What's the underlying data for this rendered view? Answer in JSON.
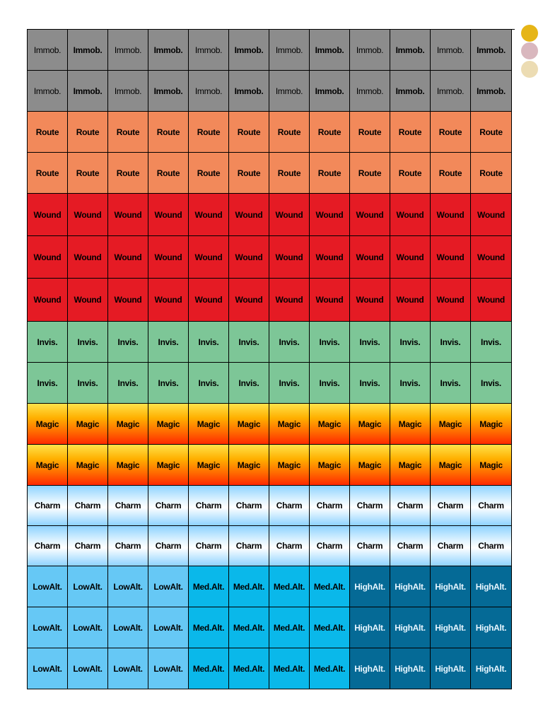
{
  "grid": {
    "rows": [
      {
        "type": "immob",
        "label": "Immob."
      },
      {
        "type": "immob",
        "label": "Immob."
      },
      {
        "type": "route",
        "label": "Route"
      },
      {
        "type": "route",
        "label": "Route"
      },
      {
        "type": "wound",
        "label": "Wound"
      },
      {
        "type": "wound",
        "label": "Wound"
      },
      {
        "type": "wound",
        "label": "Wound"
      },
      {
        "type": "invis",
        "label": "Invis."
      },
      {
        "type": "invis",
        "label": "Invis."
      },
      {
        "type": "magic",
        "label": "Magic"
      },
      {
        "type": "magic",
        "label": "Magic"
      },
      {
        "type": "charm",
        "label": "Charm"
      },
      {
        "type": "charm",
        "label": "Charm"
      },
      {
        "type": "alt",
        "label": ""
      },
      {
        "type": "alt",
        "label": ""
      },
      {
        "type": "alt",
        "label": ""
      }
    ],
    "altitude_labels": {
      "low": {
        "line1": "Low",
        "line2": "Alt."
      },
      "med": {
        "line1": "Med.",
        "line2": "Alt."
      },
      "high": {
        "line1": "High",
        "line2": "Alt."
      }
    },
    "altitude_pattern": [
      "low",
      "low",
      "low",
      "low",
      "med",
      "med",
      "med",
      "med",
      "high",
      "high",
      "high",
      "high"
    ]
  },
  "colors": {
    "immob": "#8c8c8c",
    "route": "#f2895a",
    "wound": "#e51b24",
    "invis": "#7dc697",
    "low": "#66c8f5",
    "med": "#0ab8ea",
    "high": "#056a96"
  },
  "side_dots": [
    {
      "color": "#e6b517"
    },
    {
      "color": "#d9b7be"
    },
    {
      "color": "#ecdcb3"
    }
  ]
}
